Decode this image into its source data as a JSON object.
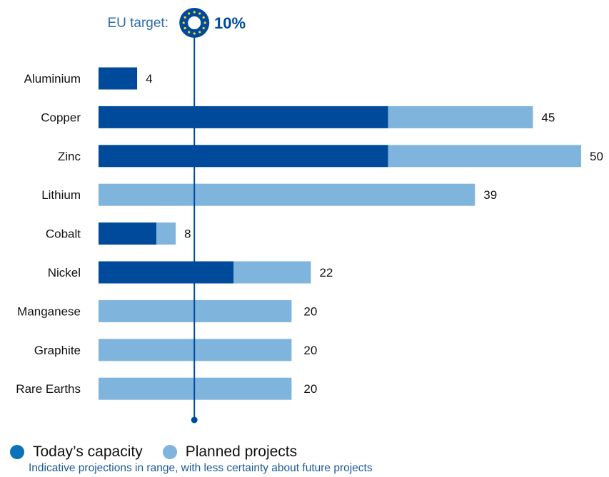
{
  "chart_data": {
    "type": "bar",
    "orientation": "horizontal",
    "stacked": true,
    "categories": [
      "Aluminium",
      "Copper",
      "Zinc",
      "Lithium",
      "Cobalt",
      "Nickel",
      "Manganese",
      "Graphite",
      "Rare Earths"
    ],
    "series": [
      {
        "name": "Today’s capacity",
        "color": "#004a9b",
        "values": [
          4,
          30,
          30,
          0,
          6,
          14,
          0,
          0,
          0
        ]
      },
      {
        "name": "Planned projects",
        "color": "#7fb4dd",
        "values": [
          0,
          15,
          20,
          39,
          2,
          8,
          20,
          20,
          20
        ]
      }
    ],
    "totals": [
      4,
      45,
      50,
      39,
      8,
      22,
      20,
      20,
      20
    ],
    "total_labels": [
      "4",
      "45",
      "50",
      "39",
      "8",
      "22",
      "20",
      "20",
      "20"
    ],
    "xlim": [
      0,
      50
    ],
    "target": {
      "label": "EU target:",
      "value": 10,
      "value_label": "10%",
      "color": "#004a9b"
    },
    "grid": false,
    "legend_position": "bottom-left",
    "note": "Indicative projections in range, with less certainty about future projects"
  },
  "colors": {
    "label_blue": "#2a6cb0",
    "legend_today": "#0a72b8",
    "legend_planned": "#7fb4dd"
  }
}
